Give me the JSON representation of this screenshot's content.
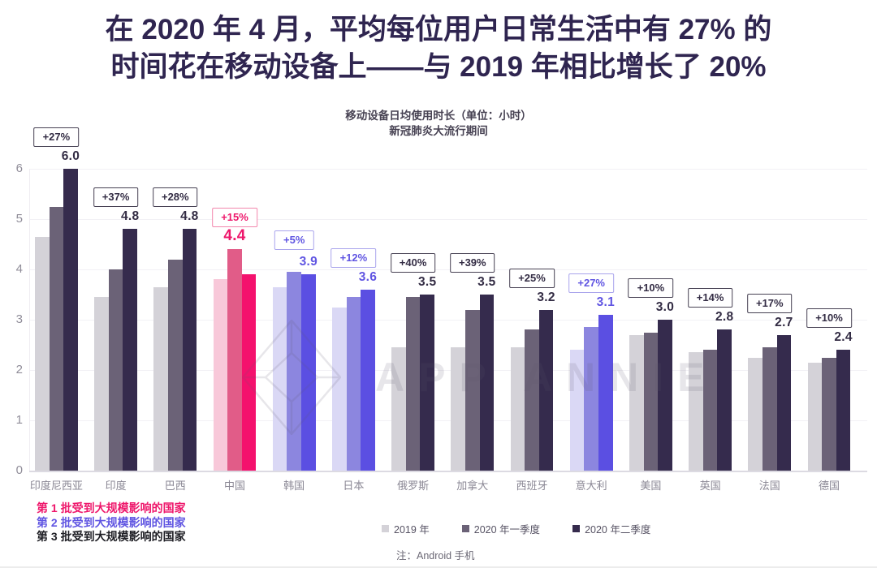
{
  "header": {
    "title_line1": "在 2020 年 4 月，平均每位用户日常生活中有 27% 的",
    "title_line2": "时间花在移动设备上——与 2019 年相比增长了 20%"
  },
  "chart_data": {
    "type": "bar",
    "title": "移动设备日均使用时长（单位：小时）",
    "subtitle": "新冠肺炎大流行期间",
    "ylim": [
      0,
      6
    ],
    "yticks": [
      0,
      1,
      2,
      3,
      4,
      5,
      6
    ],
    "grid": true,
    "legend_position": "bottom",
    "legend": [
      "2019 年",
      "2020 年一季度",
      "2020 年二季度"
    ],
    "categories": [
      "印度尼西亚",
      "印度",
      "巴西",
      "中国",
      "韩国",
      "日本",
      "俄罗斯",
      "加拿大",
      "西班牙",
      "意大利",
      "美国",
      "英国",
      "法国",
      "德国"
    ],
    "series": [
      {
        "name": "2019 年",
        "values": [
          4.65,
          3.45,
          3.65,
          3.8,
          3.65,
          3.25,
          2.45,
          2.45,
          2.45,
          2.4,
          2.7,
          2.35,
          2.25,
          2.15
        ]
      },
      {
        "name": "2020 年一季度",
        "values": [
          5.25,
          4.0,
          4.2,
          4.4,
          3.95,
          3.45,
          3.45,
          3.2,
          2.8,
          2.85,
          2.75,
          2.4,
          2.45,
          2.25
        ]
      },
      {
        "name": "2020 年二季度",
        "values": [
          6.0,
          4.8,
          4.8,
          3.9,
          3.9,
          3.6,
          3.5,
          3.5,
          3.2,
          3.1,
          3.0,
          2.8,
          2.7,
          2.4
        ]
      }
    ],
    "pct_change_labels": [
      "+27%",
      "+37%",
      "+28%",
      "+15%",
      "+5%",
      "+12%",
      "+40%",
      "+39%",
      "+25%",
      "+27%",
      "+10%",
      "+14%",
      "+17%",
      "+10%"
    ],
    "value_labels": [
      "6.0",
      "4.8",
      "4.8",
      "4.4",
      "3.9",
      "3.6",
      "3.5",
      "3.5",
      "3.2",
      "3.1",
      "3.0",
      "2.8",
      "2.7",
      "2.4"
    ],
    "value_label_bar_index": [
      2,
      2,
      2,
      1,
      2,
      2,
      2,
      2,
      2,
      2,
      2,
      2,
      2,
      2
    ],
    "impact_wave": [
      3,
      3,
      3,
      1,
      2,
      2,
      3,
      3,
      3,
      2,
      3,
      3,
      3,
      3
    ]
  },
  "palette": {
    "wave1": {
      "bars": [
        "#f8c8d9",
        "#e15c88",
        "#f4116d"
      ],
      "badge_border": "#f387ad",
      "text": "#ee176b"
    },
    "wave2": {
      "bars": [
        "#dad8f5",
        "#8c86df",
        "#5b4fe2"
      ],
      "badge_border": "#a9a4ec",
      "text": "#6055e2"
    },
    "wave3": {
      "bars": [
        "#d4d2d8",
        "#6b6277",
        "#352b4d"
      ],
      "badge_border": "#474153",
      "text": "#332c44"
    },
    "title_color": "#2f2550",
    "axis_text": "#908d99",
    "watermark": "#5e586e"
  },
  "footnotes": {
    "phases": [
      {
        "text": "第 1 批受到大规模影响的国家",
        "color": "#ee176b"
      },
      {
        "text": "第 2 批受到大规模影响的国家",
        "color": "#6055e2"
      },
      {
        "text": "第 3 批受到大规模影响的国家",
        "color": "#1e1e24"
      }
    ],
    "note": "注：Android 手机"
  },
  "watermark_text": "APP ANNIE"
}
